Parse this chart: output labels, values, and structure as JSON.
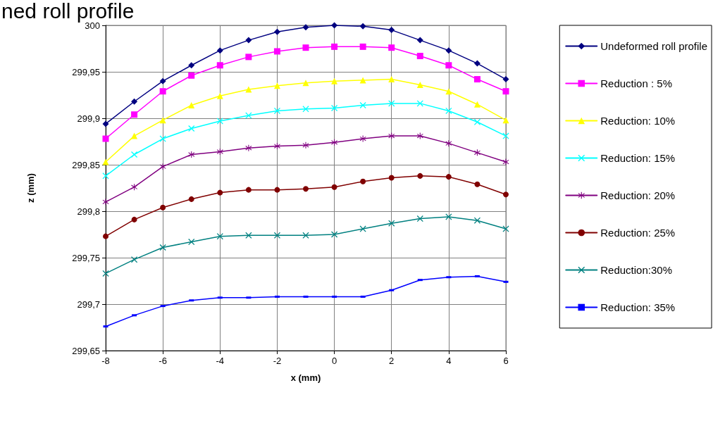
{
  "chart_data": {
    "type": "line",
    "title": "ned roll profile",
    "xlabel": "x (mm)",
    "ylabel": "z (mm)",
    "x": [
      -8,
      -7,
      -6,
      -5,
      -4,
      -3,
      -2,
      -1,
      0,
      1,
      2,
      3,
      4,
      5,
      6
    ],
    "series": [
      {
        "name": "Undeformed roll profile",
        "color": "#000080",
        "marker": "diamond",
        "values": [
          299.894,
          299.918,
          299.94,
          299.957,
          299.973,
          299.984,
          299.993,
          299.998,
          300.0,
          299.999,
          299.995,
          299.984,
          299.973,
          299.959,
          299.942
        ]
      },
      {
        "name": "Reduction : 5%",
        "color": "#ff00ff",
        "marker": "square",
        "values": [
          299.878,
          299.904,
          299.929,
          299.946,
          299.957,
          299.966,
          299.972,
          299.976,
          299.977,
          299.977,
          299.976,
          299.967,
          299.957,
          299.942,
          299.929
        ]
      },
      {
        "name": "Reduction: 10%",
        "color": "#ffff00",
        "marker": "triangle",
        "values": [
          299.853,
          299.881,
          299.898,
          299.914,
          299.924,
          299.931,
          299.935,
          299.938,
          299.94,
          299.941,
          299.942,
          299.936,
          299.929,
          299.915,
          299.898
        ]
      },
      {
        "name": "Reduction: 15%",
        "color": "#00ffff",
        "marker": "cross",
        "values": [
          299.838,
          299.861,
          299.878,
          299.889,
          299.897,
          299.903,
          299.908,
          299.91,
          299.911,
          299.914,
          299.916,
          299.916,
          299.908,
          299.896,
          299.881
        ]
      },
      {
        "name": "Reduction: 20%",
        "color": "#800080",
        "marker": "star",
        "values": [
          299.81,
          299.826,
          299.848,
          299.861,
          299.864,
          299.868,
          299.87,
          299.871,
          299.874,
          299.878,
          299.881,
          299.881,
          299.873,
          299.863,
          299.853
        ]
      },
      {
        "name": "Reduction: 25%",
        "color": "#800000",
        "marker": "circle",
        "values": [
          299.773,
          299.791,
          299.804,
          299.813,
          299.82,
          299.823,
          299.823,
          299.824,
          299.826,
          299.832,
          299.836,
          299.838,
          299.837,
          299.829,
          299.818
        ]
      },
      {
        "name": "Reduction:30%",
        "color": "#008080",
        "marker": "cross",
        "values": [
          299.733,
          299.748,
          299.761,
          299.767,
          299.773,
          299.774,
          299.774,
          299.774,
          299.775,
          299.781,
          299.787,
          299.792,
          299.794,
          299.79,
          299.781
        ]
      },
      {
        "name": "Reduction: 35%",
        "color": "#0000ff",
        "marker": "square",
        "values": [
          299.676,
          299.688,
          299.698,
          299.704,
          299.707,
          299.707,
          299.708,
          299.708,
          299.708,
          299.708,
          299.715,
          299.726,
          299.729,
          299.73,
          299.724
        ]
      }
    ],
    "xlim": [
      -8,
      6
    ],
    "xticks": [
      -8,
      -6,
      -4,
      -2,
      0,
      2,
      4,
      6
    ],
    "ylim": [
      299.65,
      300
    ],
    "yticks": [
      {
        "value": 299.65,
        "label": "299,65"
      },
      {
        "value": 299.7,
        "label": "299,7"
      },
      {
        "value": 299.75,
        "label": "299,75"
      },
      {
        "value": 299.8,
        "label": "299,8"
      },
      {
        "value": 299.85,
        "label": "299,85"
      },
      {
        "value": 299.9,
        "label": "299,9"
      },
      {
        "value": 299.95,
        "label": "299,95"
      },
      {
        "value": 300,
        "label": "300"
      }
    ],
    "grid": true,
    "legend": "right",
    "line_style": "solid"
  }
}
